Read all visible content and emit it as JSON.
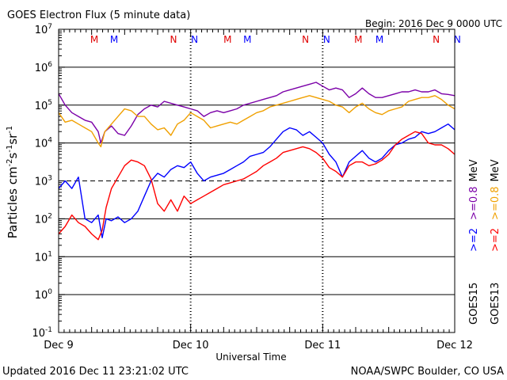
{
  "chart_data": {
    "type": "line",
    "title": "GOES Electron Flux (5 minute data)",
    "begin_label": "Begin: 2016 Dec 9 0000 UTC",
    "xlabel": "Universal Time",
    "ylabel": {
      "base": "Particles cm",
      "e1": "-2",
      "mid1": "s",
      "e2": "-1",
      "mid2": "sr",
      "e3": "-1"
    },
    "x_ticks": [
      "Dec 9",
      "Dec 10",
      "Dec 11",
      "Dec 12"
    ],
    "x_range_days": [
      0,
      3
    ],
    "y_log_range": [
      -1,
      7
    ],
    "y_ticks": [
      {
        "exp": 7,
        "label": "10",
        "sup": "7"
      },
      {
        "exp": 6,
        "label": "10",
        "sup": "6"
      },
      {
        "exp": 5,
        "label": "10",
        "sup": "5"
      },
      {
        "exp": 4,
        "label": "10",
        "sup": "4"
      },
      {
        "exp": 3,
        "label": "10",
        "sup": "3"
      },
      {
        "exp": 2,
        "label": "10",
        "sup": "2"
      },
      {
        "exp": 1,
        "label": "10",
        "sup": "1"
      },
      {
        "exp": 0,
        "label": "10",
        "sup": "0"
      },
      {
        "exp": -1,
        "label": "10",
        "sup": "-1"
      }
    ],
    "threshold_exp": 3,
    "markers": [
      {
        "label": "M",
        "day": 0.27,
        "color": "#e00000"
      },
      {
        "label": "M",
        "day": 0.42,
        "color": "#0000ff"
      },
      {
        "label": "N",
        "day": 0.87,
        "color": "#e00000"
      },
      {
        "label": "N",
        "day": 1.03,
        "color": "#0000ff"
      },
      {
        "label": "M",
        "day": 1.28,
        "color": "#e00000"
      },
      {
        "label": "M",
        "day": 1.43,
        "color": "#0000ff"
      },
      {
        "label": "N",
        "day": 1.87,
        "color": "#e00000"
      },
      {
        "label": "N",
        "day": 2.03,
        "color": "#0000ff"
      },
      {
        "label": "M",
        "day": 2.27,
        "color": "#e00000"
      },
      {
        "label": "M",
        "day": 2.43,
        "color": "#0000ff"
      },
      {
        "label": "N",
        "day": 2.86,
        "color": "#e00000"
      },
      {
        "label": "N",
        "day": 3.02,
        "color": "#0000ff"
      }
    ],
    "legend": {
      "goes15_label": "GOES15",
      "goes13_label": "GOES13",
      "rows": [
        {
          "text": ">=2",
          "color": "#0000ff",
          "series": "GOES15 >=2 MeV"
        },
        {
          "text": ">=2",
          "color": "#ff0000",
          "series": "GOES13 >=2 MeV"
        },
        {
          "text": ">=0.8",
          "color": "#7b00a8",
          "series": "GOES15 >=0.8 MeV"
        },
        {
          "text": ">=0.8",
          "color": "#f0a000",
          "series": "GOES13 >=0.8 MeV"
        }
      ],
      "unit": "MeV"
    },
    "series": [
      {
        "name": "GOES15 >=0.8 MeV",
        "color": "#7b00a8",
        "x": [
          0,
          0.05,
          0.1,
          0.15,
          0.2,
          0.25,
          0.3,
          0.32,
          0.35,
          0.4,
          0.45,
          0.5,
          0.55,
          0.6,
          0.65,
          0.7,
          0.75,
          0.8,
          0.85,
          0.9,
          0.95,
          1.0,
          1.05,
          1.1,
          1.15,
          1.2,
          1.25,
          1.3,
          1.35,
          1.4,
          1.45,
          1.5,
          1.55,
          1.6,
          1.65,
          1.7,
          1.75,
          1.8,
          1.85,
          1.9,
          1.95,
          2.0,
          2.05,
          2.1,
          2.15,
          2.2,
          2.25,
          2.3,
          2.35,
          2.4,
          2.45,
          2.5,
          2.55,
          2.6,
          2.65,
          2.7,
          2.75,
          2.8,
          2.85,
          2.9,
          2.95,
          3.0
        ],
        "log10_flux": [
          5.3,
          5.0,
          4.8,
          4.7,
          4.6,
          4.55,
          4.3,
          4.0,
          4.3,
          4.45,
          4.25,
          4.2,
          4.45,
          4.75,
          4.9,
          5.0,
          4.95,
          5.1,
          5.05,
          5.0,
          4.95,
          4.9,
          4.85,
          4.7,
          4.8,
          4.85,
          4.8,
          4.85,
          4.9,
          5.0,
          5.05,
          5.1,
          5.15,
          5.2,
          5.25,
          5.35,
          5.4,
          5.45,
          5.5,
          5.55,
          5.6,
          5.5,
          5.4,
          5.45,
          5.4,
          5.2,
          5.3,
          5.45,
          5.3,
          5.2,
          5.2,
          5.25,
          5.3,
          5.35,
          5.35,
          5.4,
          5.35,
          5.35,
          5.4,
          5.3,
          5.28,
          5.25
        ]
      },
      {
        "name": "GOES13 >=0.8 MeV",
        "color": "#f0a000",
        "x": [
          0,
          0.05,
          0.1,
          0.15,
          0.2,
          0.25,
          0.3,
          0.32,
          0.35,
          0.4,
          0.45,
          0.5,
          0.55,
          0.6,
          0.65,
          0.7,
          0.75,
          0.8,
          0.85,
          0.9,
          0.95,
          1.0,
          1.05,
          1.1,
          1.15,
          1.2,
          1.25,
          1.3,
          1.35,
          1.4,
          1.45,
          1.5,
          1.55,
          1.6,
          1.65,
          1.7,
          1.75,
          1.8,
          1.85,
          1.9,
          1.95,
          2.0,
          2.05,
          2.1,
          2.15,
          2.2,
          2.25,
          2.3,
          2.35,
          2.4,
          2.45,
          2.5,
          2.55,
          2.6,
          2.65,
          2.7,
          2.75,
          2.8,
          2.85,
          2.9,
          2.95,
          3.0
        ],
        "log10_flux": [
          4.8,
          4.55,
          4.6,
          4.5,
          4.4,
          4.3,
          4.0,
          3.9,
          4.3,
          4.5,
          4.7,
          4.9,
          4.85,
          4.7,
          4.7,
          4.5,
          4.35,
          4.4,
          4.2,
          4.5,
          4.6,
          4.8,
          4.7,
          4.6,
          4.4,
          4.45,
          4.5,
          4.55,
          4.5,
          4.6,
          4.7,
          4.8,
          4.85,
          4.95,
          5.0,
          5.05,
          5.1,
          5.15,
          5.2,
          5.25,
          5.2,
          5.15,
          5.1,
          5.0,
          4.95,
          4.8,
          4.95,
          5.05,
          4.9,
          4.8,
          4.75,
          4.85,
          4.9,
          4.95,
          5.1,
          5.15,
          5.2,
          5.2,
          5.25,
          5.15,
          5.0,
          4.9
        ]
      },
      {
        "name": "GOES15 >=2 MeV",
        "color": "#0000ff",
        "x": [
          0,
          0.05,
          0.1,
          0.15,
          0.2,
          0.25,
          0.3,
          0.33,
          0.36,
          0.4,
          0.45,
          0.5,
          0.55,
          0.6,
          0.65,
          0.7,
          0.75,
          0.8,
          0.85,
          0.9,
          0.95,
          1.0,
          1.05,
          1.1,
          1.15,
          1.2,
          1.25,
          1.3,
          1.35,
          1.4,
          1.45,
          1.5,
          1.55,
          1.6,
          1.65,
          1.7,
          1.75,
          1.8,
          1.85,
          1.9,
          1.95,
          2.0,
          2.05,
          2.1,
          2.15,
          2.2,
          2.25,
          2.3,
          2.35,
          2.4,
          2.45,
          2.5,
          2.55,
          2.6,
          2.65,
          2.7,
          2.75,
          2.8,
          2.85,
          2.9,
          2.95,
          3.0
        ],
        "log10_flux": [
          2.8,
          3.0,
          2.8,
          3.1,
          2.0,
          1.9,
          2.1,
          1.5,
          2.0,
          1.95,
          2.05,
          1.9,
          2.0,
          2.2,
          2.6,
          3.0,
          3.2,
          3.1,
          3.3,
          3.4,
          3.35,
          3.5,
          3.2,
          3.0,
          3.1,
          3.15,
          3.2,
          3.3,
          3.4,
          3.5,
          3.65,
          3.7,
          3.75,
          3.9,
          4.1,
          4.3,
          4.4,
          4.35,
          4.2,
          4.3,
          4.15,
          4.0,
          3.7,
          3.5,
          3.1,
          3.5,
          3.65,
          3.8,
          3.6,
          3.5,
          3.6,
          3.8,
          3.95,
          4.0,
          4.1,
          4.15,
          4.3,
          4.25,
          4.3,
          4.4,
          4.5,
          4.35
        ]
      },
      {
        "name": "GOES13 >=2 MeV",
        "color": "#ff0000",
        "x": [
          0,
          0.05,
          0.1,
          0.15,
          0.2,
          0.25,
          0.3,
          0.33,
          0.36,
          0.4,
          0.45,
          0.5,
          0.55,
          0.6,
          0.65,
          0.7,
          0.75,
          0.8,
          0.85,
          0.9,
          0.95,
          1.0,
          1.05,
          1.1,
          1.15,
          1.2,
          1.25,
          1.3,
          1.35,
          1.4,
          1.45,
          1.5,
          1.55,
          1.6,
          1.65,
          1.7,
          1.75,
          1.8,
          1.85,
          1.9,
          1.95,
          2.0,
          2.05,
          2.1,
          2.15,
          2.2,
          2.25,
          2.3,
          2.35,
          2.4,
          2.45,
          2.5,
          2.55,
          2.6,
          2.65,
          2.7,
          2.75,
          2.8,
          2.85,
          2.9,
          2.95,
          3.0
        ],
        "log10_flux": [
          1.6,
          1.8,
          2.1,
          1.9,
          1.8,
          1.6,
          1.45,
          1.7,
          2.3,
          2.8,
          3.1,
          3.4,
          3.55,
          3.5,
          3.4,
          3.05,
          2.4,
          2.2,
          2.5,
          2.2,
          2.6,
          2.4,
          2.5,
          2.6,
          2.7,
          2.8,
          2.9,
          2.95,
          3.0,
          3.05,
          3.15,
          3.25,
          3.4,
          3.5,
          3.6,
          3.75,
          3.8,
          3.85,
          3.9,
          3.85,
          3.75,
          3.6,
          3.35,
          3.25,
          3.1,
          3.4,
          3.5,
          3.5,
          3.4,
          3.45,
          3.55,
          3.7,
          3.95,
          4.1,
          4.2,
          4.3,
          4.25,
          4.0,
          3.95,
          3.95,
          3.85,
          3.7
        ]
      }
    ]
  },
  "footer": {
    "updated": "Updated 2016 Dec 11 23:21:02 UTC",
    "source": "NOAA/SWPC Boulder, CO USA"
  }
}
